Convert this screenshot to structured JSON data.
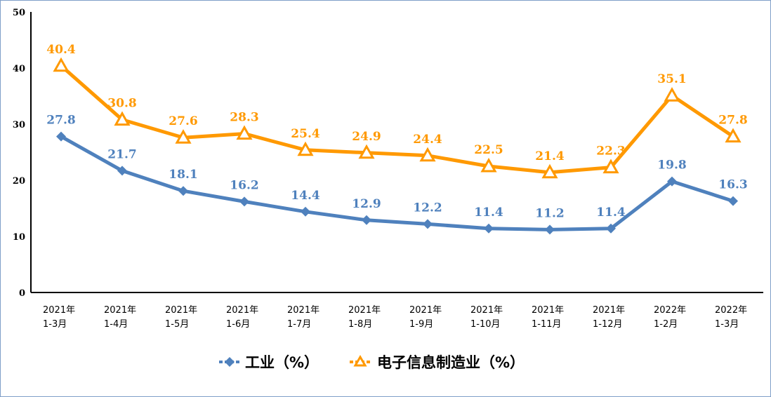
{
  "chart_data": {
    "type": "line",
    "categories": [
      [
        "2021年",
        "1-3月"
      ],
      [
        "2021年",
        "1-4月"
      ],
      [
        "2021年",
        "1-5月"
      ],
      [
        "2021年",
        "1-6月"
      ],
      [
        "2021年",
        "1-7月"
      ],
      [
        "2021年",
        "1-8月"
      ],
      [
        "2021年",
        "1-9月"
      ],
      [
        "2021年",
        "1-10月"
      ],
      [
        "2021年",
        "1-11月"
      ],
      [
        "2021年",
        "1-12月"
      ],
      [
        "2022年",
        "1-2月"
      ],
      [
        "2022年",
        "1-3月"
      ]
    ],
    "ylim": [
      0,
      50
    ],
    "yticks": [
      0,
      10,
      20,
      30,
      40,
      50
    ],
    "grid": false,
    "legend": "bottom",
    "series": [
      {
        "name": "工业（%）",
        "color": "#4f81bd",
        "marker": "diamond",
        "values": [
          27.8,
          21.7,
          18.1,
          16.2,
          14.4,
          12.9,
          12.2,
          11.4,
          11.2,
          11.4,
          19.8,
          16.3
        ]
      },
      {
        "name": "电子信息制造业（%）",
        "color": "#ff9900",
        "marker": "triangle",
        "values": [
          40.4,
          30.8,
          27.6,
          28.3,
          25.4,
          24.9,
          24.4,
          22.5,
          21.4,
          22.3,
          35.1,
          27.8
        ]
      }
    ]
  }
}
